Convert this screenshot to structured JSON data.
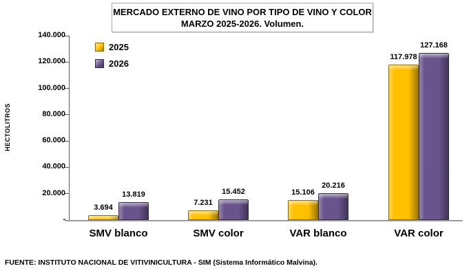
{
  "chart_data": {
    "type": "bar",
    "title": "MERCADO EXTERNO DE VINO POR TIPO DE VINO Y COLOR",
    "subtitle": "MARZO 2025-2026. Volumen.",
    "ylabel": "HECTOLITROS",
    "categories": [
      "SMV blanco",
      "SMV color",
      "VAR blanco",
      "VAR color"
    ],
    "series": [
      {
        "name": "2025",
        "color": "#FFC000",
        "edge_color": "#8A6A00",
        "values": [
          3694,
          7231,
          15106,
          117978
        ],
        "value_labels": [
          "3.694",
          "7.231",
          "15.106",
          "117.978"
        ]
      },
      {
        "name": "2026",
        "color": "#69548B",
        "edge_color": "#352A4D",
        "values": [
          13819,
          15452,
          20216,
          127168
        ],
        "value_labels": [
          "13.819",
          "15.452",
          "20.216",
          "127.168"
        ]
      }
    ],
    "ylim": [
      0,
      140000
    ],
    "ytick_labels": [
      "-",
      "20.000",
      "40.000",
      "60.000",
      "80.000",
      "100.000",
      "120.000",
      "140.000"
    ],
    "grid": false,
    "legend_position": "top-left-inside"
  },
  "footer": "FUENTE: INSTITUTO NACIONAL DE VITIVINICULTURA - SIM (Sistema Informático Malvina)."
}
